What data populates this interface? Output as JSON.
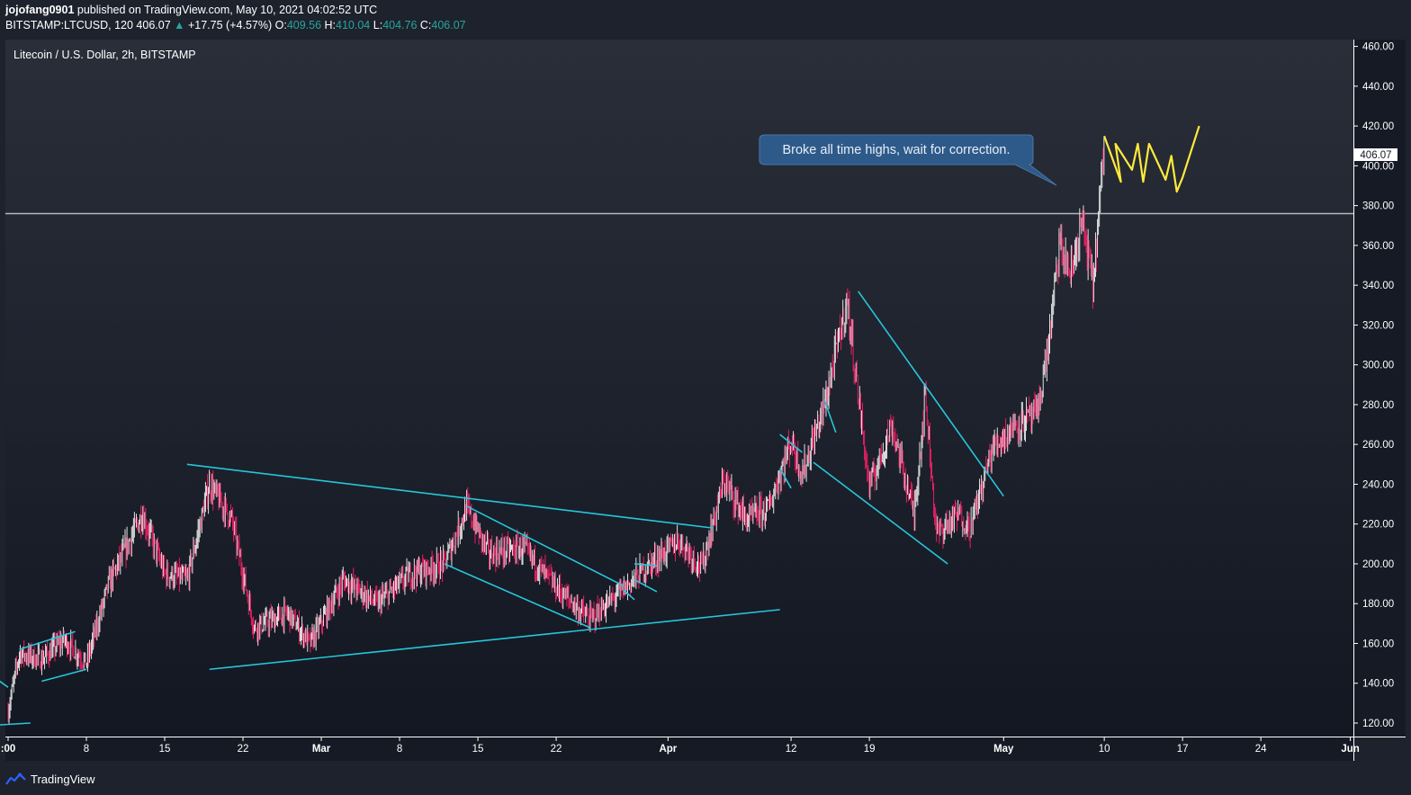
{
  "header": {
    "author": "jojofang0901",
    "published_text": "published on TradingView.com, May 10, 2021 04:02:52 UTC",
    "symbol_line": "BITSTAMP:LTCUSD, 120",
    "last": "406.07",
    "change": "+17.75 (+4.57%)",
    "o_label": "O:",
    "o": "409.56",
    "h_label": "H:",
    "h": "410.04",
    "l_label": "L:",
    "l": "404.76",
    "c_label": "C:",
    "c": "406.07"
  },
  "legend_title": "Litecoin / U.S. Dollar, 2h, BITSTAMP",
  "annotation": "Broke all time highs, wait for correction.",
  "price_tag": "406.07",
  "footer_brand": "TradingView",
  "colors": {
    "background": "#1e222d",
    "up_candle": "#e0e0e0",
    "down_candle": "#e91e63",
    "trendline": "#26c6da",
    "projection": "#ffeb3b",
    "horizontal_level": "#b2b5be",
    "callout": "#2e5a8a"
  },
  "chart_data": {
    "type": "candlestick",
    "title": "Litecoin / U.S. Dollar, 2h, BITSTAMP",
    "ylim": [
      112,
      464
    ],
    "y_ticks": [
      "460.00",
      "440.00",
      "420.00",
      "400.00",
      "380.00",
      "360.00",
      "340.00",
      "320.00",
      "300.00",
      "280.00",
      "260.00",
      "240.00",
      "220.00",
      "200.00",
      "180.00",
      "160.00",
      "140.00",
      "120.00"
    ],
    "x_ticks": [
      {
        "label": ":00",
        "date": "2021-02-01"
      },
      {
        "label": "8",
        "date": "2021-02-08"
      },
      {
        "label": "15",
        "date": "2021-02-15"
      },
      {
        "label": "22",
        "date": "2021-02-22"
      },
      {
        "label": "Mar",
        "date": "2021-03-01"
      },
      {
        "label": "8",
        "date": "2021-03-08"
      },
      {
        "label": "15",
        "date": "2021-03-15"
      },
      {
        "label": "22",
        "date": "2021-03-22"
      },
      {
        "label": "Apr",
        "date": "2021-04-01"
      },
      {
        "label": "12",
        "date": "2021-04-12"
      },
      {
        "label": "19",
        "date": "2021-04-19"
      },
      {
        "label": "May",
        "date": "2021-05-01"
      },
      {
        "label": "10",
        "date": "2021-05-10"
      },
      {
        "label": "17",
        "date": "2021-05-17"
      },
      {
        "label": "24",
        "date": "2021-05-24"
      },
      {
        "label": "Jun",
        "date": "2021-06-01"
      }
    ],
    "horizontal_level": 376,
    "price_path": [
      [
        "2021-02-01",
        126
      ],
      [
        "2021-02-02",
        155
      ],
      [
        "2021-02-04",
        152
      ],
      [
        "2021-02-06",
        162
      ],
      [
        "2021-02-08",
        150
      ],
      [
        "2021-02-10",
        190
      ],
      [
        "2021-02-13",
        225
      ],
      [
        "2021-02-15",
        195
      ],
      [
        "2021-02-17",
        192
      ],
      [
        "2021-02-19",
        240
      ],
      [
        "2021-02-21",
        222
      ],
      [
        "2021-02-23",
        168
      ],
      [
        "2021-02-26",
        175
      ],
      [
        "2021-02-28",
        160
      ],
      [
        "2021-03-03",
        192
      ],
      [
        "2021-03-06",
        180
      ],
      [
        "2021-03-09",
        195
      ],
      [
        "2021-03-12",
        200
      ],
      [
        "2021-03-14",
        228
      ],
      [
        "2021-03-16",
        205
      ],
      [
        "2021-03-19",
        208
      ],
      [
        "2021-03-22",
        188
      ],
      [
        "2021-03-25",
        172
      ],
      [
        "2021-03-27",
        182
      ],
      [
        "2021-03-30",
        198
      ],
      [
        "2021-04-02",
        212
      ],
      [
        "2021-04-04",
        198
      ],
      [
        "2021-04-06",
        242
      ],
      [
        "2021-04-08",
        222
      ],
      [
        "2021-04-10",
        228
      ],
      [
        "2021-04-12",
        262
      ],
      [
        "2021-04-13",
        245
      ],
      [
        "2021-04-15",
        280
      ],
      [
        "2021-04-17",
        332
      ],
      [
        "2021-04-19",
        238
      ],
      [
        "2021-04-21",
        270
      ],
      [
        "2021-04-23",
        225
      ],
      [
        "2021-04-24",
        285
      ],
      [
        "2021-04-25",
        215
      ],
      [
        "2021-04-27",
        225
      ],
      [
        "2021-04-28",
        218
      ],
      [
        "2021-04-30",
        258
      ],
      [
        "2021-05-02",
        270
      ],
      [
        "2021-05-04",
        275
      ],
      [
        "2021-05-05",
        310
      ],
      [
        "2021-05-06",
        360
      ],
      [
        "2021-05-07",
        345
      ],
      [
        "2021-05-08",
        372
      ],
      [
        "2021-05-09",
        340
      ],
      [
        "2021-05-10",
        410
      ]
    ],
    "trendlines": [
      {
        "from": [
          "2021-02-02",
          157
        ],
        "to": [
          "2021-02-07",
          166
        ]
      },
      {
        "from": [
          "2021-02-04",
          141
        ],
        "to": [
          "2021-02-08",
          147
        ]
      },
      {
        "from": [
          "2021-01-31",
          142
        ],
        "to": [
          "2021-02-01",
          138
        ]
      },
      {
        "from": [
          "2021-01-31",
          119
        ],
        "to": [
          "2021-02-03",
          120
        ]
      },
      {
        "from": [
          "2021-02-17",
          250
        ],
        "to": [
          "2021-04-05",
          218
        ]
      },
      {
        "from": [
          "2021-02-19",
          147
        ],
        "to": [
          "2021-04-11",
          177
        ]
      },
      {
        "from": [
          "2021-03-14",
          229
        ],
        "to": [
          "2021-03-28",
          189
        ]
      },
      {
        "from": [
          "2021-03-12",
          200
        ],
        "to": [
          "2021-03-25",
          168
        ]
      },
      {
        "from": [
          "2021-03-28",
          187
        ],
        "to": [
          "2021-03-29",
          182
        ]
      },
      {
        "from": [
          "2021-03-29",
          200
        ],
        "to": [
          "2021-03-31",
          199
        ]
      },
      {
        "from": [
          "2021-03-29",
          192
        ],
        "to": [
          "2021-03-31",
          186
        ]
      },
      {
        "from": [
          "2021-04-11",
          265
        ],
        "to": [
          "2021-04-13",
          256
        ]
      },
      {
        "from": [
          "2021-04-11",
          248
        ],
        "to": [
          "2021-04-12",
          238
        ]
      },
      {
        "from": [
          "2021-04-15",
          282
        ],
        "to": [
          "2021-04-16",
          266
        ]
      },
      {
        "from": [
          "2021-04-18",
          337
        ],
        "to": [
          "2021-05-01",
          234
        ]
      },
      {
        "from": [
          "2021-04-14",
          251
        ],
        "to": [
          "2021-04-26",
          200
        ]
      }
    ],
    "projection": [
      [
        "2021-05-10",
        415
      ],
      [
        "2021-05-11",
        392
      ],
      [
        "2021-05-11",
        411
      ],
      [
        "2021-05-12",
        398
      ],
      [
        "2021-05-13",
        411
      ],
      [
        "2021-05-13",
        392
      ],
      [
        "2021-05-14",
        411
      ],
      [
        "2021-05-15",
        393
      ],
      [
        "2021-05-16",
        405
      ],
      [
        "2021-05-16",
        387
      ],
      [
        "2021-05-17",
        394
      ],
      [
        "2021-05-18",
        420
      ]
    ]
  }
}
